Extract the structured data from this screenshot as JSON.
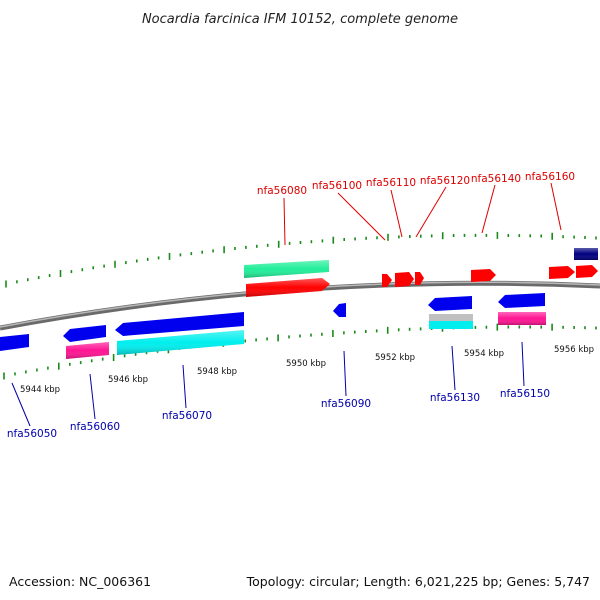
{
  "title": "Nocardia farcinica IFM 10152, complete genome",
  "footer": {
    "accession": "Accession: NC_006361",
    "summary": "Topology: circular; Length: 6,021,225 bp; Genes: 5,747"
  },
  "colors": {
    "backbone": "#8c8c8c",
    "ticks": "#1a8a1a",
    "top_label": "#dd0000",
    "bottom_label": "#0000aa",
    "forward": "#ff0000",
    "reverse": "#0000ee",
    "forward_rna": "#22ee99",
    "reverse_rna": "#00eeee",
    "magenta": "#ff1493",
    "grey": "#c0c0c0",
    "navy": "#000080"
  },
  "scale_labels": [
    "5944 kbp",
    "5946 kbp",
    "5948 kbp",
    "5950 kbp",
    "5952 kbp",
    "5954 kbp",
    "5956 kbp"
  ],
  "top_labels": [
    "nfa56080",
    "nfa56100",
    "nfa56110",
    "nfa56120",
    "nfa56140",
    "nfa56160"
  ],
  "bottom_labels": [
    "nfa56050",
    "nfa56060",
    "nfa56070",
    "nfa56090",
    "nfa56130",
    "nfa56150"
  ]
}
